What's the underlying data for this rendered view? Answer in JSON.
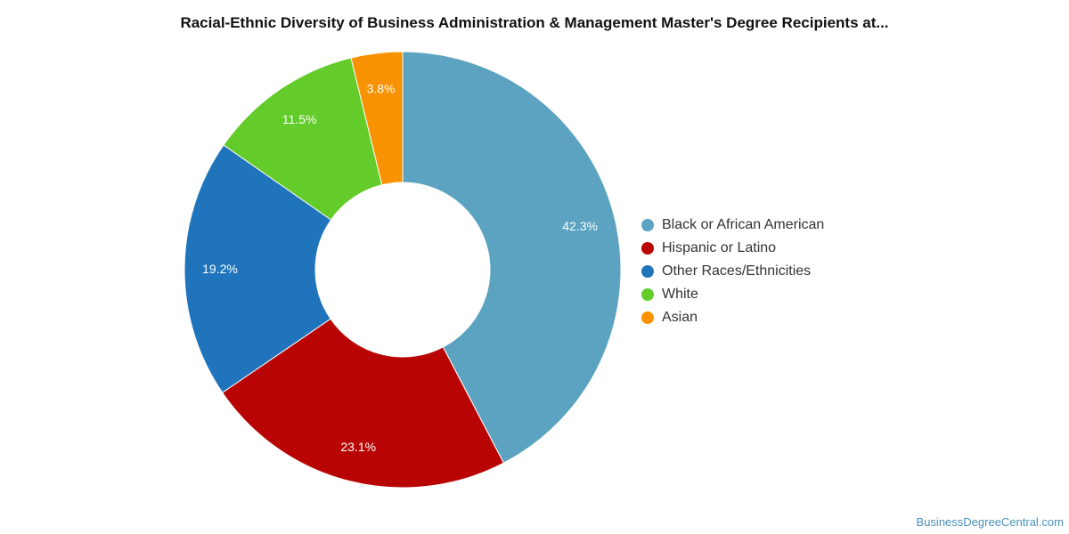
{
  "title": "Racial-Ethnic Diversity of Business Administration & Management Master's Degree Recipients at...",
  "watermark": "BusinessDegreeCentral.com",
  "chart_data": {
    "type": "pie",
    "donut": true,
    "legend_position": "right",
    "slices": [
      {
        "label": "Black or African American",
        "value": 42.3,
        "display": "42.3%",
        "color": "#5ba3c0"
      },
      {
        "label": "Hispanic or Latino",
        "value": 23.1,
        "display": "23.1%",
        "color": "#b90404"
      },
      {
        "label": "Other Races/Ethnicities",
        "value": 19.2,
        "display": "19.2%",
        "color": "#1f74bc"
      },
      {
        "label": "White",
        "value": 11.5,
        "display": "11.5%",
        "color": "#63cb2a"
      },
      {
        "label": "Asian",
        "value": 3.8,
        "display": "3.8%",
        "color": "#f99200"
      }
    ]
  }
}
